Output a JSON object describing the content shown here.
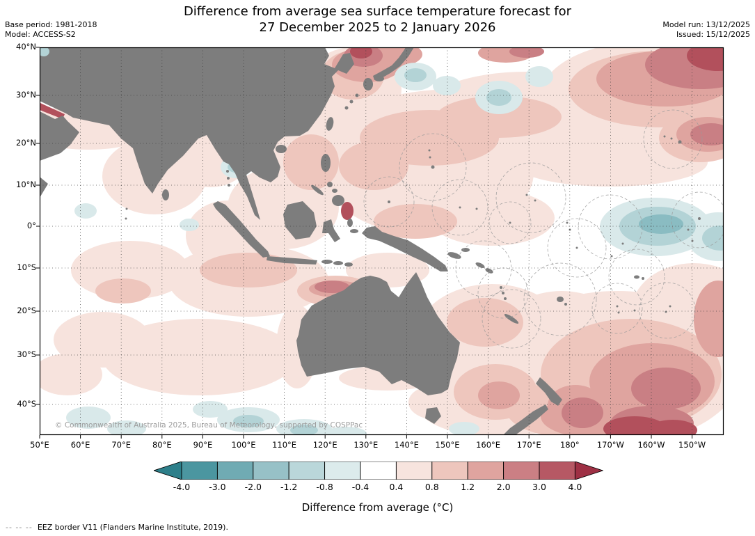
{
  "title": {
    "line1": "Difference from average sea surface temperature forecast for",
    "line2": "27 December 2025 to 2 January 2026"
  },
  "meta": {
    "base_period": "Base period: 1981-2018",
    "model": "Model: ACCESS-S2",
    "model_run": "Model run: 13/12/2025",
    "issued": "Issued: 15/12/2025"
  },
  "map": {
    "copyright": "© Commonwealth of Australia 2025, Bureau of Meteorology, supported by COSPPac",
    "x_ticks": [
      "50°E",
      "60°E",
      "70°E",
      "80°E",
      "90°E",
      "100°E",
      "110°E",
      "120°E",
      "130°E",
      "140°E",
      "150°E",
      "160°E",
      "170°E",
      "180°",
      "170°W",
      "160°W",
      "150°W"
    ],
    "y_ticks": [
      "40°N",
      "30°N",
      "20°N",
      "10°N",
      "0°",
      "10°S",
      "20°S",
      "30°S",
      "40°S"
    ]
  },
  "colorbar": {
    "label": "Difference from average (°C)",
    "ticks": [
      "-4.0",
      "-3.0",
      "-2.0",
      "-1.2",
      "-0.8",
      "-0.4",
      "0.4",
      "0.8",
      "1.2",
      "2.0",
      "3.0",
      "4.0"
    ],
    "segment_colors": [
      "#4b96a0",
      "#70abb3",
      "#97c1c7",
      "#bad7da",
      "#dcebec",
      "#ffffff",
      "#f7e4de",
      "#eec6bd",
      "#dfa49f",
      "#cb7f84",
      "#b65864"
    ],
    "arrow_left_color": "#2d7f8a",
    "arrow_right_color": "#9e3044"
  },
  "footer": {
    "eez_dashes": "--  --  --",
    "eez_label": "EEZ border V11 (Flanders Marine Institute, 2019)."
  },
  "colors": {
    "land": "#7d7d7d",
    "warm1": "#f7e3dd",
    "warm2": "#eec6bd",
    "warm3": "#dfa49f",
    "warm4": "#c97f84",
    "warm5": "#b2505c",
    "cool1": "#d9e9ea",
    "cool2": "#b3d3d6",
    "cool3": "#8abcc2",
    "cool4": "#5ea4ad",
    "eez": "#9a9a9a"
  },
  "chart_data": {
    "type": "heatmap",
    "title": "Difference from average sea surface temperature forecast for 27 December 2025 to 2 January 2026",
    "model": "ACCESS-S2",
    "base_period": "1981-2018",
    "model_run": "13/12/2025",
    "issued": "15/12/2025",
    "units": "°C",
    "x_axis": {
      "tick_labels": [
        "50°E",
        "60°E",
        "70°E",
        "80°E",
        "90°E",
        "100°E",
        "110°E",
        "120°E",
        "130°E",
        "140°E",
        "150°E",
        "160°E",
        "170°E",
        "180°",
        "170°W",
        "160°W",
        "150°W"
      ]
    },
    "y_axis": {
      "tick_labels": [
        "40°N",
        "30°N",
        "20°N",
        "10°N",
        "0°",
        "10°S",
        "20°S",
        "30°S",
        "40°S"
      ]
    },
    "colorbar_tick_values": [
      -4.0,
      -3.0,
      -2.0,
      -1.2,
      -0.8,
      -0.4,
      0.4,
      0.8,
      1.2,
      2.0,
      3.0,
      4.0
    ],
    "colorbar_label": "Difference from average (°C)",
    "visible_anomalies": [
      "Strong warm anomaly (2 to >4°C) in the northwest/north-central Pacific near 30–40°N east of 160°E",
      "Warm anomaly around the Sea of Japan / East China Sea, strongest near 40°N 128°E",
      "Cool anomaly (-0.4 to -2°C) in the central equatorial Pacific near 170°W–150°W",
      "Warm band (1–3°C) along the northwest Australian coast",
      "Strong warm anomaly (2 to >4°C) east and southeast of New Zealand",
      "Small strong warm spots in the Persian Gulf and south of the Philippines",
      "Weak cool patches east of Japan, near 160°E 30°N, in the Andaman Sea and south of Australia",
      "Widespread weak warm anomalies (0.4–1.2°C) across the Indian Ocean, western Pacific and South Pacific"
    ]
  }
}
